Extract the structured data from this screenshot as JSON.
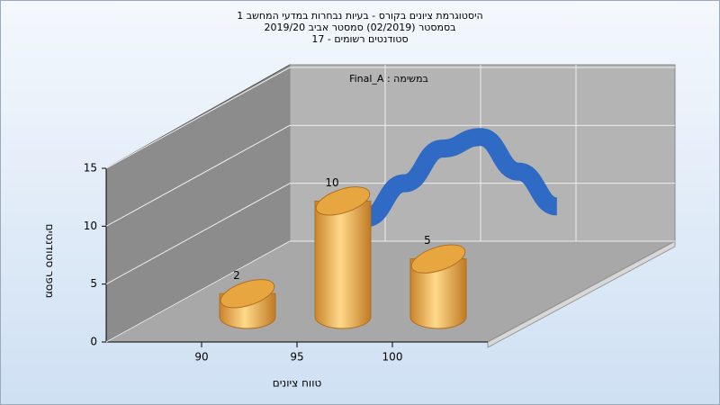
{
  "chart_data": {
    "type": "bar",
    "title": [
      "היסטוגרמת ציונים בקורס - בעיות נבחרות במדעי המחשב 1",
      "בסמסטר  (02/2019)  סמסטר אביב 2019/20",
      "סטודנטים רשומים - 17"
    ],
    "annotation": "Final_A : במשימה",
    "x_label": "טווח ציונים",
    "y_label": "מספר סטודנטים",
    "categories": [
      90,
      95,
      100
    ],
    "values": [
      2,
      10,
      5
    ],
    "color": "#e8a640",
    "curve": {
      "color": "#2f6ac4",
      "x": [
        89,
        91,
        93,
        95,
        97,
        99
      ],
      "values": [
        2,
        5,
        8,
        9,
        6,
        3
      ]
    },
    "xlim": [
      85,
      105
    ],
    "xticks": [
      90,
      95,
      100
    ],
    "ylim": [
      0,
      15
    ],
    "yticks": [
      0,
      5,
      10,
      15
    ],
    "grid": true
  }
}
